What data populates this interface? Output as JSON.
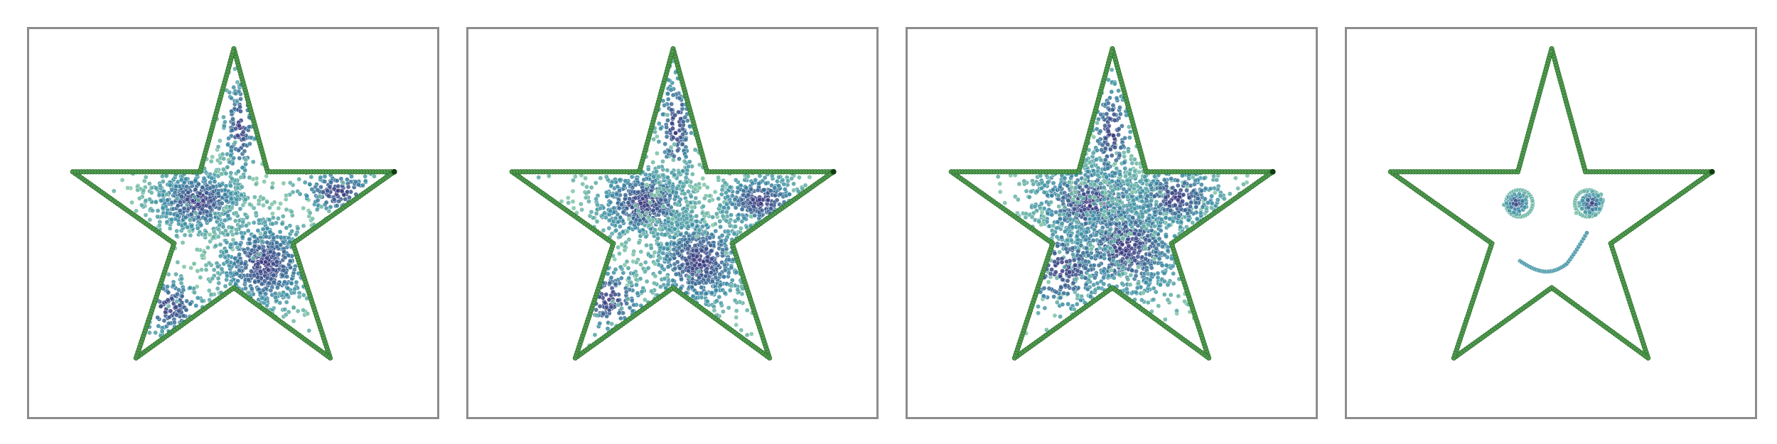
{
  "figure": {
    "panels": [
      {
        "id": "p1",
        "pattern": "two-blobs"
      },
      {
        "id": "p2",
        "pattern": "three-blobs"
      },
      {
        "id": "p3",
        "pattern": "diffuse-center"
      },
      {
        "id": "p4",
        "pattern": "smiley-face"
      }
    ],
    "colors": {
      "frame": "#8c8c8c",
      "star_outline": "#4f9a4f",
      "star_outline_edge": "#2f6f2f",
      "point_low_density": "#7fc6a4",
      "point_mid_density": "#3b8ea5",
      "point_high_density": "#3b2f7a"
    }
  }
}
